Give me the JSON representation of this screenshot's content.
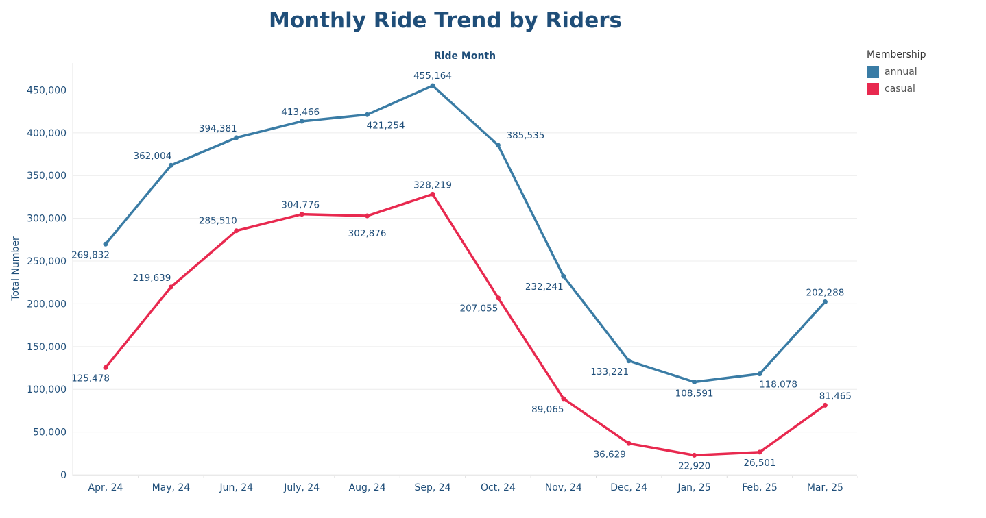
{
  "chart_data": {
    "type": "line",
    "title": "Monthly Ride Trend by Riders",
    "xlabel": "Ride Month",
    "ylabel": "Total Number",
    "categories": [
      "Apr, 24",
      "May, 24",
      "Jun, 24",
      "July, 24",
      "Aug, 24",
      "Sep, 24",
      "Oct, 24",
      "Nov, 24",
      "Dec, 24",
      "Jan, 25",
      "Feb, 25",
      "Mar, 25"
    ],
    "series": [
      {
        "name": "annual",
        "color": "#3a7ca5",
        "values": [
          269832,
          362004,
          394381,
          413466,
          421254,
          455164,
          385535,
          232241,
          133221,
          108591,
          118078,
          202288
        ],
        "labels": [
          "269,832",
          "362,004",
          "394,381",
          "413,466",
          "421,254",
          "455,164",
          "385,535",
          "232,241",
          "133,221",
          "108,591",
          "118,078",
          "202,288"
        ]
      },
      {
        "name": "casual",
        "color": "#e8294f",
        "values": [
          125478,
          219639,
          285510,
          304776,
          302876,
          328219,
          207055,
          89065,
          36629,
          22920,
          26501,
          81465
        ],
        "labels": [
          "125,478",
          "219,639",
          "285,510",
          "304,776",
          "302,876",
          "328,219",
          "207,055",
          "89,065",
          "36,629",
          "22,920",
          "26,501",
          "81,465"
        ]
      }
    ],
    "y_ticks": [
      0,
      50000,
      100000,
      150000,
      200000,
      250000,
      300000,
      350000,
      400000,
      450000
    ],
    "y_tick_labels": [
      "0",
      "50,000",
      "100,000",
      "150,000",
      "200,000",
      "250,000",
      "300,000",
      "350,000",
      "400,000",
      "450,000"
    ],
    "ylim": [
      0,
      480000
    ],
    "grid": true,
    "legend_title": "Membership",
    "legend_position": "top-right"
  }
}
